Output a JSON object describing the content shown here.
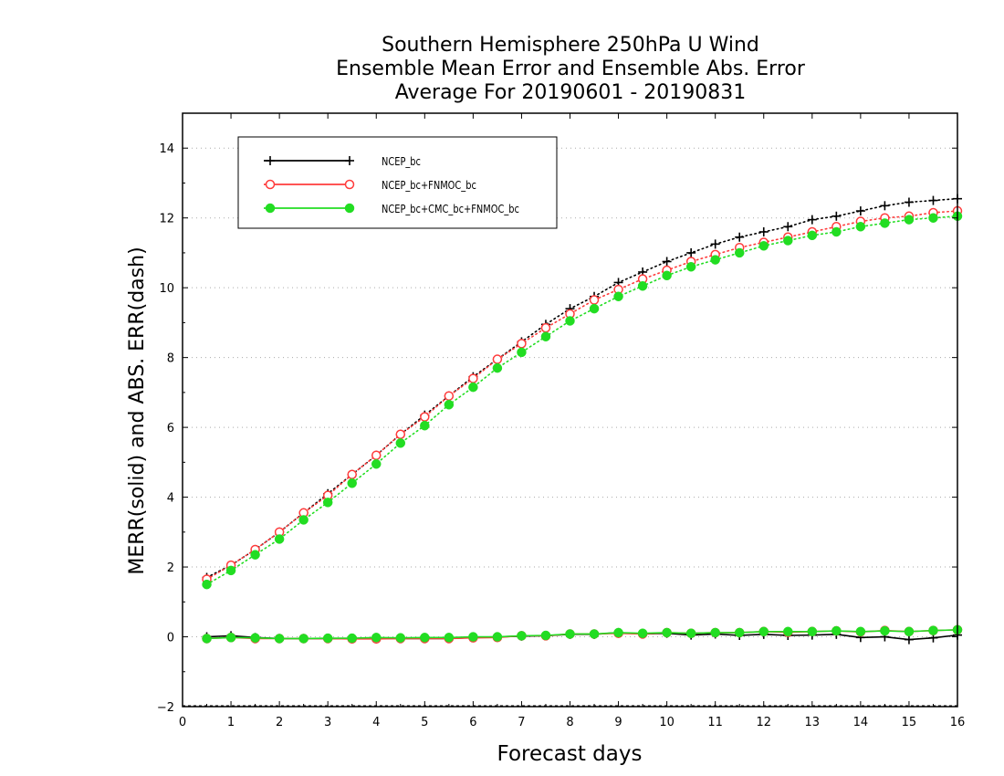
{
  "chart_data": {
    "type": "line",
    "title": [
      "Southern Hemisphere 250hPa U Wind",
      "Ensemble Mean Error and Ensemble Abs. Error",
      "Average For 20190601 - 20190831"
    ],
    "xlabel": "Forecast days",
    "ylabel": "MERR(solid) and ABS. ERR(dash)",
    "xlim": [
      0,
      16
    ],
    "ylim": [
      -2,
      15
    ],
    "xticks": [
      0,
      1,
      2,
      3,
      4,
      5,
      6,
      7,
      8,
      9,
      10,
      11,
      12,
      13,
      14,
      15,
      16
    ],
    "yticks": [
      -2,
      0,
      2,
      4,
      6,
      8,
      10,
      12,
      14
    ],
    "grid": "horizontal dotted",
    "legend_position": "top-left",
    "x": [
      0.5,
      1,
      1.5,
      2,
      2.5,
      3,
      3.5,
      4,
      4.5,
      5,
      5.5,
      6,
      6.5,
      7,
      7.5,
      8,
      8.5,
      9,
      9.5,
      10,
      10.5,
      11,
      11.5,
      12,
      12.5,
      13,
      13.5,
      14,
      14.5,
      15,
      15.5,
      16
    ],
    "series": [
      {
        "name": "NCEP_bc",
        "color": "#000000",
        "marker": "plus",
        "abs_err": [
          1.7,
          2.05,
          2.5,
          3.0,
          3.55,
          4.1,
          4.65,
          5.2,
          5.8,
          6.35,
          6.9,
          7.45,
          7.95,
          8.45,
          8.95,
          9.4,
          9.75,
          10.15,
          10.45,
          10.75,
          11.0,
          11.25,
          11.45,
          11.6,
          11.75,
          11.95,
          12.05,
          12.2,
          12.35,
          12.45,
          12.5,
          12.55
        ],
        "mean_err": [
          0.0,
          0.03,
          -0.02,
          -0.05,
          -0.05,
          -0.05,
          -0.05,
          -0.04,
          -0.05,
          -0.05,
          -0.05,
          -0.02,
          0.0,
          0.02,
          0.03,
          0.07,
          0.07,
          0.12,
          0.08,
          0.1,
          0.05,
          0.08,
          0.04,
          0.07,
          0.04,
          0.05,
          0.07,
          -0.02,
          0.0,
          -0.08,
          -0.03,
          0.05
        ]
      },
      {
        "name": "NCEP_bc+FNMOC_bc",
        "color": "#ff3b3b",
        "marker": "open-circle",
        "abs_err": [
          1.65,
          2.05,
          2.5,
          3.0,
          3.55,
          4.05,
          4.65,
          5.2,
          5.8,
          6.3,
          6.9,
          7.4,
          7.95,
          8.4,
          8.85,
          9.25,
          9.65,
          9.95,
          10.25,
          10.5,
          10.75,
          10.95,
          11.15,
          11.3,
          11.45,
          11.6,
          11.75,
          11.9,
          12.0,
          12.05,
          12.15,
          12.2
        ],
        "mean_err": [
          -0.05,
          -0.02,
          -0.05,
          -0.05,
          -0.05,
          -0.05,
          -0.06,
          -0.06,
          -0.05,
          -0.05,
          -0.05,
          -0.03,
          -0.02,
          0.03,
          0.03,
          0.08,
          0.08,
          0.1,
          0.08,
          0.12,
          0.1,
          0.12,
          0.12,
          0.15,
          0.13,
          0.15,
          0.17,
          0.14,
          0.18,
          0.15,
          0.18,
          0.2
        ]
      },
      {
        "name": "NCEP_bc+CMC_bc+FNMOC_bc",
        "color": "#22dd22",
        "marker": "filled-circle",
        "abs_err": [
          1.5,
          1.9,
          2.35,
          2.8,
          3.35,
          3.85,
          4.4,
          4.95,
          5.55,
          6.05,
          6.65,
          7.15,
          7.7,
          8.15,
          8.6,
          9.05,
          9.4,
          9.75,
          10.05,
          10.35,
          10.6,
          10.8,
          11.0,
          11.2,
          11.35,
          11.5,
          11.6,
          11.75,
          11.85,
          11.95,
          12.0,
          12.05
        ],
        "mean_err": [
          -0.05,
          -0.02,
          -0.03,
          -0.05,
          -0.05,
          -0.04,
          -0.04,
          -0.02,
          -0.03,
          -0.02,
          -0.02,
          0.0,
          0.0,
          0.03,
          0.04,
          0.08,
          0.08,
          0.12,
          0.1,
          0.12,
          0.1,
          0.12,
          0.12,
          0.15,
          0.15,
          0.15,
          0.17,
          0.15,
          0.17,
          0.15,
          0.18,
          0.2
        ]
      }
    ]
  }
}
